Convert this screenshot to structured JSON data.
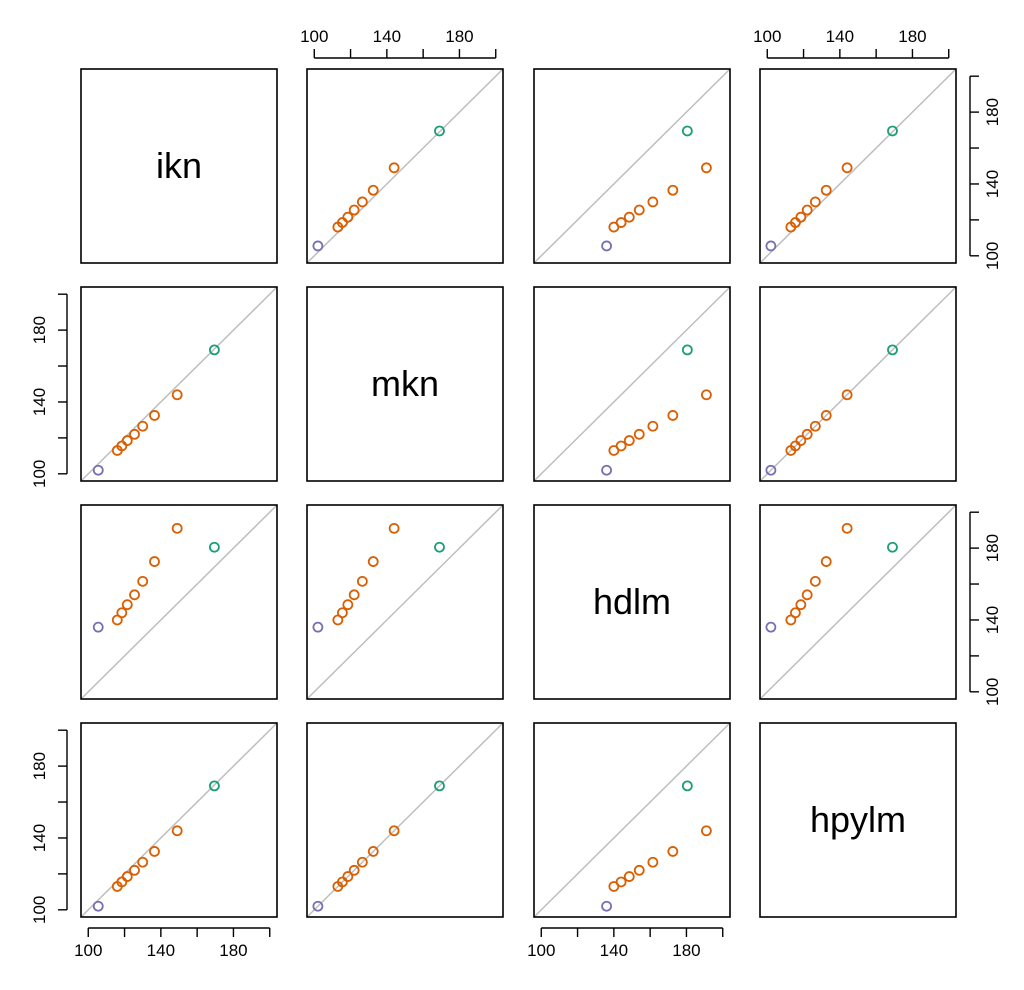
{
  "chart_data": {
    "type": "scatter",
    "kind": "pairs-matrix",
    "variables": [
      "ikn",
      "mkn",
      "hdlm",
      "hpylm"
    ],
    "axis_limits": [
      100,
      200
    ],
    "axis_tick_labels": [
      "100",
      "140",
      "180"
    ],
    "tick_marks": [
      100,
      120,
      140,
      160,
      180,
      200
    ],
    "reference_line": "y = x",
    "colors": {
      "first_point": "#7570b3",
      "middle_points": "#d95f02",
      "last_point": "#1b9e77",
      "reference_line": "#bebebe"
    },
    "observations": [
      {
        "ikn": 105.5,
        "mkn": 102.0,
        "hdlm": 136.0,
        "hpylm": 102.0
      },
      {
        "ikn": 116.0,
        "mkn": 113.0,
        "hdlm": 140.0,
        "hpylm": 113.0
      },
      {
        "ikn": 118.5,
        "mkn": 115.5,
        "hdlm": 144.0,
        "hpylm": 115.5
      },
      {
        "ikn": 121.5,
        "mkn": 118.5,
        "hdlm": 148.5,
        "hpylm": 118.5
      },
      {
        "ikn": 125.5,
        "mkn": 122.0,
        "hdlm": 154.0,
        "hpylm": 122.0
      },
      {
        "ikn": 130.0,
        "mkn": 126.5,
        "hdlm": 161.5,
        "hpylm": 126.5
      },
      {
        "ikn": 136.5,
        "mkn": 132.5,
        "hdlm": 172.5,
        "hpylm": 132.5
      },
      {
        "ikn": 149.0,
        "mkn": 144.0,
        "hdlm": 191.0,
        "hpylm": 144.0
      },
      {
        "ikn": 169.5,
        "mkn": 169.0,
        "hdlm": 180.5,
        "hpylm": 169.0
      }
    ]
  }
}
